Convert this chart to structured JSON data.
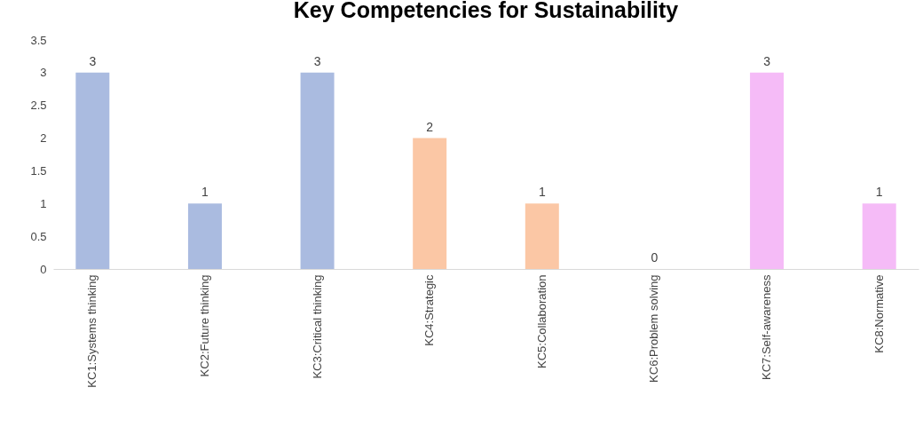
{
  "chart_data": {
    "type": "bar",
    "title": "Key Competencies for Sustainability",
    "categories": [
      "KC1:Systems thinking",
      "KC2:Future thinking",
      "KC3:Critical thinking",
      "KC4:Strategic",
      "KC5:Collaboration",
      "KC6:Problem solving",
      "KC7:Self-awareness",
      "KC8:Normative"
    ],
    "values": [
      3,
      1,
      3,
      2,
      1,
      0,
      3,
      1
    ],
    "colors": [
      "#aabbe0",
      "#aabbe0",
      "#aabbe0",
      "#fbc7a5",
      "#fbc7a5",
      "#fbc7a5",
      "#f5bbf7",
      "#f5bbf7"
    ],
    "ylim": [
      0,
      3.5
    ],
    "yticks": [
      0,
      0.5,
      1,
      1.5,
      2,
      2.5,
      3,
      3.5
    ],
    "data_labels": true,
    "grid": false
  }
}
